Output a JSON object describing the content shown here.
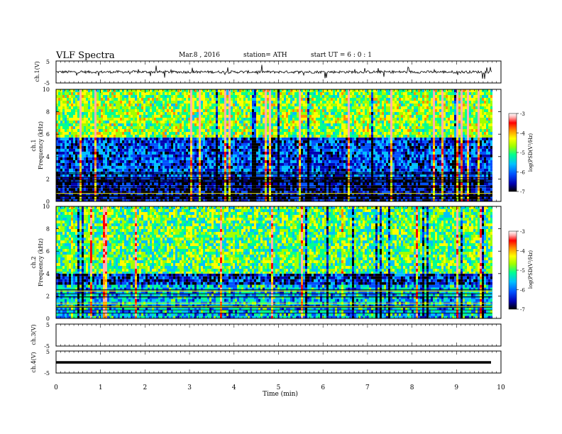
{
  "header": {
    "title": "VLF  Spectra",
    "date": "Mar.8  , 2016",
    "station": "station= ATH",
    "start": "start  UT  =   6  : 0  : 1"
  },
  "colors": {
    "spectrogram_scale": [
      "#000000",
      "#0000b0",
      "#0050ff",
      "#00c0ff",
      "#00ff90",
      "#a0ff00",
      "#ffff00",
      "#ff9000",
      "#ff0000",
      "#ffb0b0",
      "#ffffff"
    ],
    "trace": "#000000"
  },
  "chart_data": [
    {
      "type": "line",
      "ylabel": "ch.1(V)",
      "ylim": [
        -5,
        5
      ],
      "ytick_labels": [
        "5",
        "-5"
      ],
      "note": "noisy VLF waveform centred near 0 V with short spikes"
    },
    {
      "type": "heatmap",
      "ylabel": "ch.1\nFrequency (kHz)",
      "ylim": [
        0,
        10
      ],
      "ytick_labels": [
        "0",
        "2",
        "4",
        "6",
        "8",
        "10"
      ],
      "colorbar": {
        "label": "log(PSD(V²/Hz)",
        "range": [
          -7,
          -3
        ],
        "tick_labels": [
          "-3",
          "-4",
          "-5",
          "-6",
          "-7"
        ]
      },
      "bands": [
        {
          "freq_khz": [
            0,
            2.2
          ],
          "log_psd": -6.5
        },
        {
          "freq_khz": [
            2.2,
            5.7
          ],
          "log_psd": -6.1
        },
        {
          "freq_khz": [
            5.7,
            10
          ],
          "log_psd": -4.8
        }
      ]
    },
    {
      "type": "heatmap",
      "ylabel": "ch.2\nFrequency (kHz)",
      "ylim": [
        0,
        10
      ],
      "ytick_labels": [
        "0",
        "2",
        "4",
        "6",
        "8",
        "10"
      ],
      "colorbar": {
        "label": "log(PSD(V²/Hz)",
        "range": [
          -7,
          -3
        ],
        "tick_labels": [
          "-3",
          "-4",
          "-5",
          "-6",
          "-7"
        ]
      },
      "bands": [
        {
          "freq_khz": [
            0,
            3
          ],
          "log_psd": -5.6
        },
        {
          "freq_khz": [
            3,
            4
          ],
          "log_psd": -6.3
        },
        {
          "freq_khz": [
            4,
            10
          ],
          "log_psd": -5.0
        }
      ]
    },
    {
      "type": "line",
      "ylabel": "ch.3(V)",
      "ylim": [
        -5,
        5
      ],
      "ytick_labels": [
        "5",
        "-5"
      ],
      "note": "empty channel"
    },
    {
      "type": "line",
      "ylabel": "ch.4(V)",
      "ylim": [
        -5,
        5
      ],
      "ytick_labels": [
        "5",
        "-5"
      ],
      "note": "constant level near 0 V"
    }
  ],
  "x_axis": {
    "label": "Time  (min)",
    "range": [
      0,
      10
    ],
    "tick_labels": [
      "0",
      "1",
      "2",
      "3",
      "4",
      "5",
      "6",
      "7",
      "8",
      "9",
      "10"
    ],
    "data_end": 9.8
  }
}
